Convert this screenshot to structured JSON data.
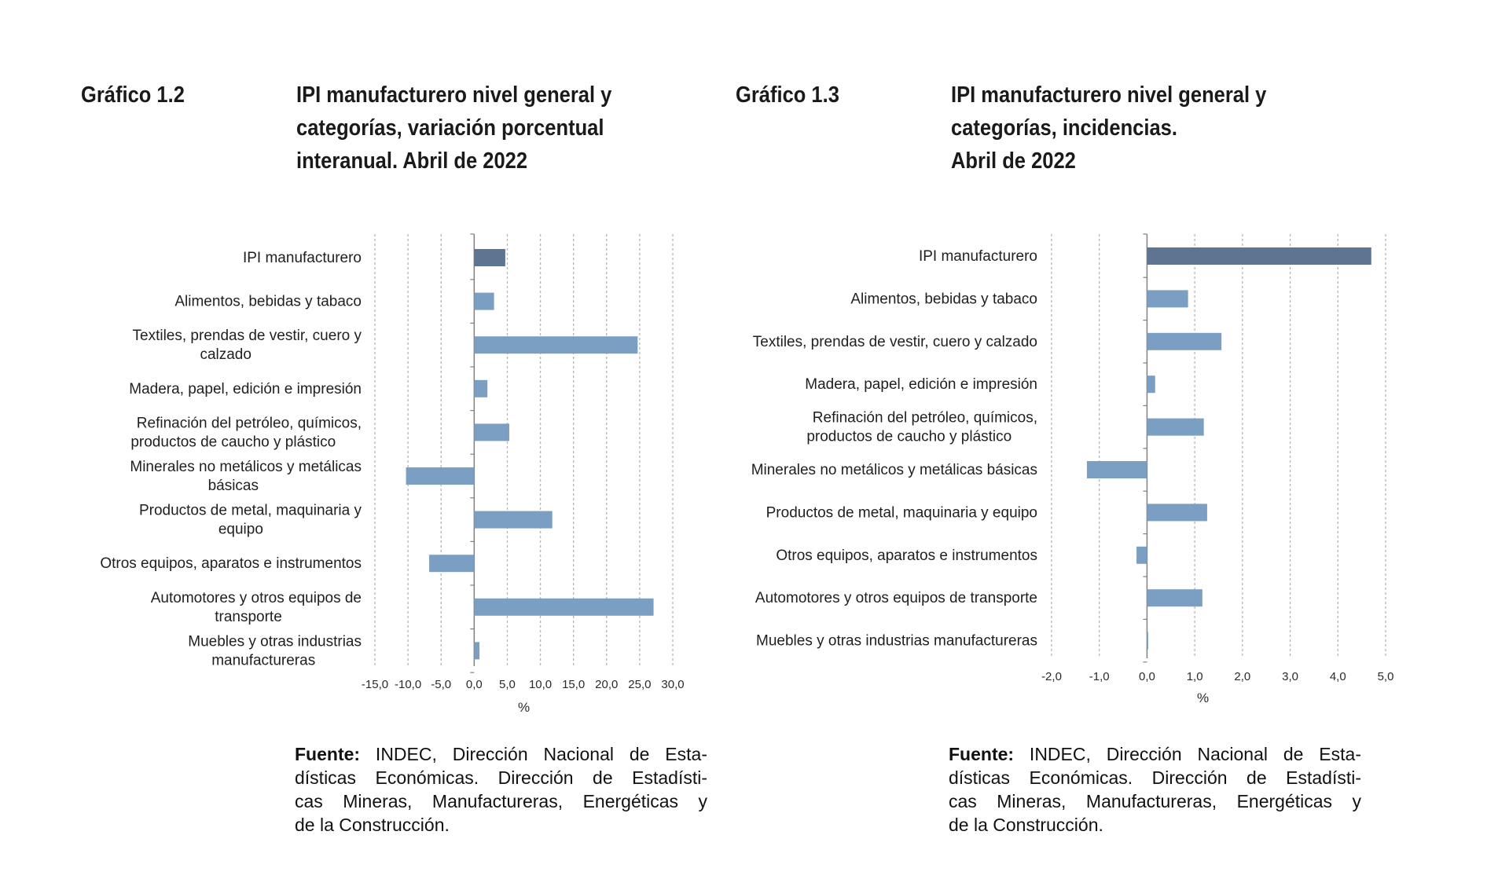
{
  "colors": {
    "bar_general": "#5d7591",
    "bar_category": "#7b9ec3",
    "grid": "#b5b5b5",
    "axis": "#808080"
  },
  "chart_data": [
    {
      "type": "bar",
      "orientation": "horizontal",
      "figure_label": "Gráfico 1.2",
      "title": "IPI manufacturero nivel general y categorías, variación porcentual interanual. Abril de 2022",
      "title_lines": [
        "IPI manufacturero nivel general y",
        "categorías, variación porcentual",
        "interanual. Abril de 2022"
      ],
      "categories": [
        [
          "IPI manufacturero"
        ],
        [
          "Alimentos, bebidas y tabaco"
        ],
        [
          "Textiles, prendas de vestir, cuero y",
          "calzado"
        ],
        [
          "Madera, papel, edición e impresión"
        ],
        [
          "Refinación del petróleo, químicos,",
          "productos de caucho y plástico"
        ],
        [
          "Minerales no metálicos y metálicas",
          "básicas"
        ],
        [
          "Productos de metal, maquinaria y",
          "equipo"
        ],
        [
          "Otros equipos, aparatos e instrumentos"
        ],
        [
          "Automotores y otros equipos de",
          "transporte"
        ],
        [
          "Muebles y otras industrias",
          "manufactureras"
        ]
      ],
      "values": [
        4.7,
        3.0,
        24.7,
        2.0,
        5.3,
        -10.3,
        11.8,
        -6.8,
        27.1,
        0.8
      ],
      "xlim": [
        -15,
        30
      ],
      "xticks": [
        "-15,0",
        "-10,0",
        "-5,0",
        "0,0",
        "5,0",
        "10,0",
        "15,0",
        "20,0",
        "25,0",
        "30,0"
      ],
      "xlabel": "%",
      "grid": true,
      "source_label": "Fuente:",
      "source_lines": [
        " INDEC, Dirección Nacional de Esta-",
        "dísticas Económicas. Dirección de Estadísti-",
        "cas Mineras, Manufactureras, Energéticas y",
        "de la Construcción."
      ]
    },
    {
      "type": "bar",
      "orientation": "horizontal",
      "figure_label": "Gráfico 1.3",
      "title": "IPI manufacturero nivel general y categorías, incidencias. Abril de 2022",
      "title_lines": [
        "IPI manufacturero nivel general y",
        "categorías, incidencias.",
        "Abril de 2022"
      ],
      "categories": [
        [
          "IPI manufacturero"
        ],
        [
          "Alimentos, bebidas y tabaco"
        ],
        [
          "Textiles, prendas de vestir, cuero y calzado"
        ],
        [
          "Madera, papel, edición e impresión"
        ],
        [
          "Refinación del petróleo, químicos,",
          "productos de caucho y plástico"
        ],
        [
          "Minerales no metálicos y metálicas básicas"
        ],
        [
          "Productos de metal, maquinaria y equipo"
        ],
        [
          "Otros equipos, aparatos e instrumentos"
        ],
        [
          "Automotores y otros equipos de transporte"
        ],
        [
          "Muebles y otras industrias manufactureras"
        ]
      ],
      "values": [
        4.7,
        0.86,
        1.56,
        0.17,
        1.19,
        -1.26,
        1.26,
        -0.22,
        1.16,
        0.02
      ],
      "xlim": [
        -2,
        5
      ],
      "xticks": [
        "-2,0",
        "-1,0",
        "0,0",
        "1,0",
        "2,0",
        "3,0",
        "4,0",
        "5,0"
      ],
      "xlabel": "%",
      "grid": true,
      "source_label": "Fuente:",
      "source_lines": [
        " INDEC, Dirección Nacional de Esta-",
        "dísticas Económicas. Dirección de Estadísti-",
        "cas Mineras, Manufactureras, Energéticas y",
        "de la Construcción."
      ]
    }
  ]
}
